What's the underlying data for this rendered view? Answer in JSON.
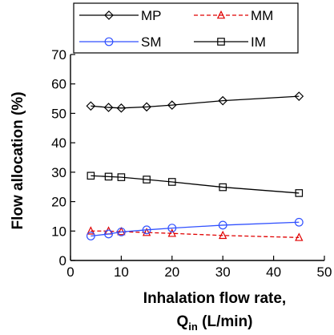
{
  "chart_data": {
    "type": "line",
    "title": "",
    "xlabel": "Inhalation flow rate,",
    "xlabel_line2": {
      "base": "Q",
      "subscript": "in",
      "suffix": " (L/min)"
    },
    "ylabel": "Flow allocation (%)",
    "xlim": [
      0,
      50
    ],
    "ylim": [
      0,
      70
    ],
    "xticks": [
      0,
      10,
      20,
      30,
      40,
      50
    ],
    "yticks": [
      0,
      10,
      20,
      30,
      40,
      50,
      60,
      70
    ],
    "x": [
      4,
      7.5,
      10,
      15,
      20,
      30,
      45
    ],
    "grid": false,
    "legend_position": "top",
    "series": [
      {
        "name": "MP",
        "values": [
          52.5,
          52.0,
          51.8,
          52.2,
          52.8,
          54.3,
          55.8
        ],
        "color": "#000000",
        "line": "solid",
        "marker": "diamond"
      },
      {
        "name": "MM",
        "values": [
          10.0,
          10.0,
          9.8,
          9.5,
          9.2,
          8.5,
          7.8
        ],
        "color": "#e00000",
        "line": "dashed",
        "marker": "triangle"
      },
      {
        "name": "SM",
        "values": [
          8.3,
          9.0,
          9.7,
          10.4,
          11.0,
          12.0,
          13.0
        ],
        "color": "#3050ff",
        "line": "solid",
        "marker": "circle"
      },
      {
        "name": "IM",
        "values": [
          28.8,
          28.5,
          28.3,
          27.5,
          26.7,
          24.9,
          22.9
        ],
        "color": "#000000",
        "line": "solid",
        "marker": "square"
      }
    ]
  }
}
